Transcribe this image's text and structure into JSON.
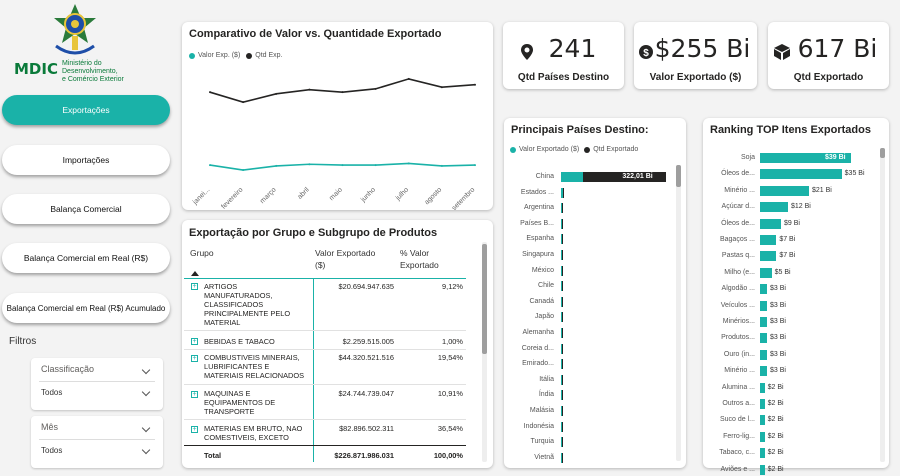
{
  "logo": {
    "brand": "MDIC",
    "subtitle_lines": [
      "Ministério do",
      "Desenvolvimento,",
      "e Comércio Exterior"
    ]
  },
  "nav": [
    {
      "label": "Exportações",
      "active": true
    },
    {
      "label": "Importações",
      "active": false
    },
    {
      "label": "Balança Comercial",
      "active": false
    },
    {
      "label": "Balança Comercial em Real (R$)",
      "active": false
    },
    {
      "label": "Balança Comercial em Real (R$) Acumulado",
      "active": false
    }
  ],
  "filters": {
    "title": "Filtros",
    "items": [
      {
        "label": "Classificação",
        "value": "Todos"
      },
      {
        "label": "Mês",
        "value": "Todos"
      }
    ]
  },
  "kpis": [
    {
      "icon": "location-icon",
      "value": "241",
      "label": "Qtd Países Destino"
    },
    {
      "icon": "dollar-icon",
      "value": "$255 Bi",
      "label": "Valor Exportado ($)"
    },
    {
      "icon": "box-icon",
      "value": "617 Bi",
      "label": "Qtd Exportado"
    }
  ],
  "colors": {
    "accent": "#1ab2a8",
    "dark": "#252423"
  },
  "line_chart": {
    "title": "Comparativo de Valor vs. Quantidade Exportado",
    "legend": [
      "Valor Exp. ($)",
      "Qtd Exp."
    ],
    "chart_data": {
      "type": "line",
      "x": [
        "janei...",
        "fevereiro",
        "março",
        "abril",
        "maio",
        "junho",
        "julho",
        "agosto",
        "setembro"
      ],
      "series": [
        {
          "name": "Valor Exp. ($)",
          "color": "#1ab2a8",
          "values": [
            19,
            16,
            18.5,
            19.5,
            19,
            19,
            20,
            18.5,
            19
          ]
        },
        {
          "name": "Qtd Exp.",
          "color": "#252423",
          "values": [
            63,
            57,
            62,
            64.5,
            63,
            65,
            71,
            66,
            67.5
          ]
        }
      ],
      "ylim": [
        10,
        80
      ]
    }
  },
  "table": {
    "title": "Exportação por Grupo e Subgrupo de Produtos",
    "headers": [
      "Grupo",
      "Valor Exportado ($)",
      "% Valor Exportado"
    ],
    "rows": [
      {
        "grupo": "ARTIGOS MANUFATURADOS, CLASSIFICADOS PRINCIPALMENTE PELO MATERIAL",
        "valor": "$20.694.947.635",
        "pct": "9,12%"
      },
      {
        "grupo": "BEBIDAS E TABACO",
        "valor": "$2.259.515.005",
        "pct": "1,00%"
      },
      {
        "grupo": "COMBUSTIVEIS MINERAIS, LUBRIFICANTES E MATERIAIS RELACIONADOS",
        "valor": "$44.320.521.516",
        "pct": "19,54%"
      },
      {
        "grupo": "MAQUINAS E EQUIPAMENTOS DE TRANSPORTE",
        "valor": "$24.744.739.047",
        "pct": "10,91%"
      },
      {
        "grupo": "MATERIAS EM BRUTO, NAO COMESTIVEIS, EXCETO COMBUSTIVEIS",
        "valor": "$82.896.502.311",
        "pct": "36,54%"
      }
    ],
    "total": {
      "label": "Total",
      "valor": "$226.871.986.031",
      "pct": "100,00%"
    }
  },
  "countries_chart": {
    "title": "Principais Países Destino:",
    "legend": [
      "Valor Exportado ($)",
      "Qtd Exportado"
    ],
    "chart_data": {
      "type": "bar",
      "categories": [
        "China",
        "Estados ...",
        "Argentina",
        "Países B...",
        "Espanha",
        "Singapura",
        "México",
        "Chile",
        "Canadá",
        "Japão",
        "Alemanha",
        "Coreia d...",
        "Emirado...",
        "Itália",
        "Índia",
        "Malásia",
        "Indonésia",
        "Turquia",
        "Vietnã"
      ],
      "series": [
        {
          "name": "Valor Exportado ($)",
          "color": "#1ab2a8",
          "values": [
            10,
            2.5,
            1.5,
            2,
            1.3,
            0.9,
            1.3,
            0.9,
            0.7,
            0.9,
            1.0,
            0.9,
            0.7,
            0.7,
            0.8,
            0.6,
            0.6,
            0.6,
            0.5
          ]
        },
        {
          "name": "Qtd Exportado",
          "color": "#252423",
          "values": [
            322.01,
            9,
            3,
            4,
            3,
            2,
            2,
            2.5,
            2,
            2.5,
            2.5,
            2.5,
            2,
            2,
            2.5,
            3.5,
            2,
            2,
            1.5
          ]
        }
      ],
      "data_labels": [
        "322,01 Bi"
      ],
      "xlim": [
        0,
        330
      ]
    }
  },
  "ranking_chart": {
    "title": "Ranking TOP Itens Exportados",
    "chart_data": {
      "type": "bar",
      "categories": [
        "Soja",
        "Óleos de...",
        "Minério ...",
        "Açúcar d...",
        "Óleos de...",
        "Bagaços ...",
        "Pastas q...",
        "Milho (e...",
        "Algodão ...",
        "Veículos ...",
        "Minérios...",
        "Produtos...",
        "Ouro (in...",
        "Minério ...",
        "Alumina ...",
        "Outros a...",
        "Suco de l...",
        "Ferro-lig...",
        "Tabaco, c...",
        "Aviões e ..."
      ],
      "values": [
        39,
        35,
        21,
        12,
        9,
        7,
        7,
        5,
        3,
        3,
        3,
        3,
        3,
        3,
        2,
        2,
        2,
        2,
        2,
        2
      ],
      "data_labels": [
        "$39 Bi",
        "$35 Bi",
        "$21 Bi",
        "$12 Bi",
        "$9 Bi",
        "$7 Bi",
        "$7 Bi",
        "$5 Bi",
        "$3 Bi",
        "$3 Bi",
        "$3 Bi",
        "$3 Bi",
        "$3 Bi",
        "$3 Bi",
        "$2 Bi",
        "$2 Bi",
        "$2 Bi",
        "$2 Bi",
        "$2 Bi",
        "$2 Bi"
      ],
      "xlim": [
        0,
        48
      ]
    }
  }
}
